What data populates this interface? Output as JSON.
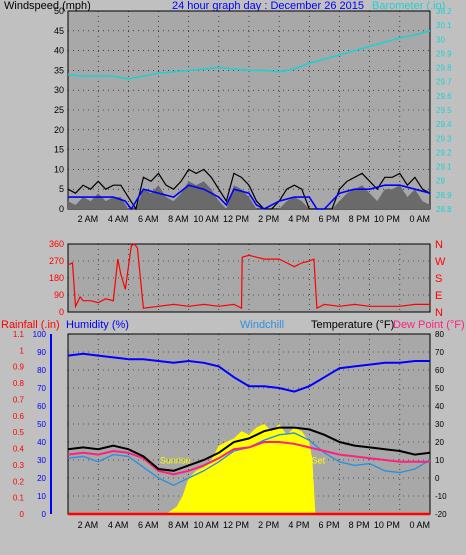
{
  "colors": {
    "background": "#c0c0c0",
    "plot_bg": "#a8a8a8",
    "wind": "#000000",
    "wind_avg": "#0000ff",
    "gust_fill": "#6a6a6a",
    "barometer": "#20d0d0",
    "direction": "#ff0000",
    "rain": "#ff0000",
    "humidity": "#0000ff",
    "windchill": "#2f8fdf",
    "temperature": "#000000",
    "dewpoint": "#ff2080",
    "solar": "#ffff00"
  },
  "header": {
    "windspeed_label": "Windspeed (mph)",
    "graph_title": "24 hour graph day : December 26 2015",
    "barometer_label": "Barometer (.in)"
  },
  "bottom_header": {
    "rainfall_label": "Rainfall (.in)",
    "humidity_label": "Humidity (%)",
    "windchill_label": "Windchill",
    "temperature_label": "Temperature (°F)",
    "dewpoint_label": "Dew Point (°F)"
  },
  "annotations": {
    "sunrise": "Sunrise",
    "sunset": "Set"
  },
  "chart_data": [
    {
      "type": "line",
      "title": "24 hour graph day : December 26 2015",
      "x_ticks": [
        "2 AM",
        "4 AM",
        "6 AM",
        "8 AM",
        "10 AM",
        "12 PM",
        "2 PM",
        "4 PM",
        "6 PM",
        "8 PM",
        "10 PM",
        "0 AM"
      ],
      "x_range_hours": [
        0,
        24
      ],
      "grid": true,
      "left_axis": {
        "label": "Windspeed (mph)",
        "ticks": [
          "0",
          "5",
          "10",
          "15",
          "20",
          "25",
          "30",
          "35",
          "40",
          "45",
          "50"
        ],
        "range": [
          0,
          50
        ]
      },
      "right_axis": {
        "label": "Barometer (.in)",
        "ticks": [
          "28.8",
          "28.9",
          "29",
          "29.1",
          "29.2",
          "29.3",
          "29.4",
          "29.5",
          "29.6",
          "29.7",
          "29.8",
          "29.9",
          "30",
          "30.1",
          "30.2"
        ],
        "range": [
          28.8,
          30.2
        ]
      },
      "series": [
        {
          "name": "Windspeed (mph)",
          "axis": "left",
          "x": [
            0,
            0.5,
            1,
            1.5,
            2,
            2.5,
            3,
            3.5,
            4,
            4.5,
            5,
            5.5,
            6,
            6.5,
            7,
            7.5,
            8,
            8.5,
            9,
            9.5,
            10,
            10.5,
            11,
            11.5,
            12,
            12.5,
            13,
            13.5,
            14,
            14.5,
            15,
            15.5,
            16,
            16.5,
            17,
            17.5,
            18,
            18.5,
            19,
            19.5,
            20,
            20.5,
            21,
            21.5,
            22,
            22.5,
            23,
            23.5,
            24
          ],
          "y": [
            5,
            4,
            6,
            5,
            7,
            5,
            6,
            6,
            3,
            0,
            8,
            7,
            9,
            6,
            5,
            7,
            10,
            9,
            10,
            8,
            5,
            2,
            9,
            8,
            6,
            2,
            0,
            0,
            2,
            5,
            6,
            5,
            0,
            0,
            0,
            0,
            5,
            7,
            8,
            9,
            7,
            5,
            8,
            8,
            9,
            6,
            8,
            5,
            4
          ]
        },
        {
          "name": "Average wind",
          "axis": "left",
          "x": [
            0,
            1,
            2,
            3,
            3.8,
            4.2,
            5,
            6,
            7,
            8,
            9,
            10,
            10.5,
            11,
            12,
            12.5,
            13,
            14,
            15,
            16,
            16.5,
            17,
            18,
            19,
            20,
            21,
            22,
            23,
            24
          ],
          "y": [
            3,
            3,
            3,
            3,
            2,
            0,
            5,
            4,
            3,
            6,
            5,
            3,
            1,
            5,
            4,
            1,
            0,
            2,
            3,
            3,
            0,
            0,
            4,
            5,
            5,
            6,
            6,
            5,
            4
          ]
        },
        {
          "name": "Barometer (.in)",
          "axis": "right",
          "x": [
            0,
            1,
            2,
            3,
            4,
            5,
            6,
            7,
            8,
            9,
            10,
            11,
            12,
            13,
            14,
            15,
            16,
            17,
            18,
            19,
            20,
            21,
            22,
            23,
            24
          ],
          "y": [
            29.75,
            29.74,
            29.74,
            29.74,
            29.72,
            29.74,
            29.76,
            29.77,
            29.78,
            29.79,
            29.8,
            29.79,
            29.78,
            29.78,
            29.77,
            29.79,
            29.83,
            29.86,
            29.89,
            29.92,
            29.95,
            29.98,
            30.01,
            30.03,
            30.06
          ]
        }
      ]
    },
    {
      "type": "line",
      "title": "",
      "x_ticks": [],
      "grid": true,
      "left_axis": {
        "ticks": [
          "0",
          "90",
          "180",
          "270",
          "360"
        ],
        "range": [
          0,
          360
        ]
      },
      "right_axis": {
        "ticks": [
          "N",
          "E",
          "S",
          "W",
          "N"
        ]
      },
      "series": [
        {
          "name": "Wind direction",
          "x": [
            0,
            0.3,
            0.5,
            0.8,
            1,
            1.5,
            2,
            2.5,
            3,
            3.3,
            3.5,
            3.8,
            4.2,
            4.4,
            4.6,
            5,
            6,
            7,
            8,
            9,
            10,
            11,
            11.5,
            11.55,
            12,
            13,
            14,
            14.5,
            15,
            15.5,
            16,
            16.3,
            16.5,
            17,
            18,
            19,
            20,
            21,
            22,
            23,
            24
          ],
          "y": [
            250,
            260,
            30,
            80,
            60,
            60,
            50,
            70,
            60,
            280,
            200,
            120,
            350,
            360,
            340,
            20,
            30,
            40,
            30,
            40,
            30,
            40,
            20,
            290,
            300,
            280,
            280,
            260,
            240,
            260,
            270,
            280,
            20,
            40,
            30,
            40,
            30,
            30,
            30,
            40,
            40
          ]
        }
      ]
    },
    {
      "type": "line",
      "title": "",
      "x_ticks": [
        "2 AM",
        "4 AM",
        "6 AM",
        "8 AM",
        "10 AM",
        "12 PM",
        "2 PM",
        "4 PM",
        "6 PM",
        "8 PM",
        "10 PM",
        "0 AM"
      ],
      "grid": true,
      "left_axis_rain": {
        "label": "Rainfall (.in)",
        "ticks": [
          "0",
          "0.1",
          "0.2",
          "0.3",
          "0.4",
          "0.5",
          "0.6",
          "0.7",
          "0.8",
          "0.9",
          "1",
          "1.1"
        ],
        "range": [
          0,
          1.1
        ]
      },
      "left_axis_humidity": {
        "label": "Humidity (%)",
        "ticks": [
          "0",
          "10",
          "20",
          "30",
          "40",
          "50",
          "60",
          "70",
          "80",
          "90",
          "100"
        ],
        "range": [
          0,
          100
        ]
      },
      "right_axis": {
        "label": "Temperature (°F)",
        "ticks": [
          "-20",
          "-10",
          "0",
          "10",
          "20",
          "30",
          "40",
          "50",
          "60",
          "70",
          "80"
        ],
        "range": [
          -20,
          80
        ]
      },
      "series": [
        {
          "name": "Humidity (%)",
          "axis": "humidity",
          "x": [
            0,
            1,
            2,
            3,
            4,
            5,
            6,
            7,
            8,
            9,
            10,
            11,
            12,
            13,
            14,
            15,
            16,
            17,
            18,
            19,
            20,
            21,
            22,
            23,
            24
          ],
          "y": [
            88,
            89,
            88,
            87,
            86,
            86,
            85,
            84,
            85,
            84,
            82,
            76,
            71,
            71,
            70,
            68,
            71,
            76,
            81,
            82,
            83,
            84,
            84,
            85,
            85
          ]
        },
        {
          "name": "Temperature (°F)",
          "axis": "temp",
          "x": [
            0,
            1,
            2,
            3,
            4,
            5,
            6,
            7,
            8,
            9,
            10,
            11,
            12,
            13,
            14,
            15,
            16,
            17,
            18,
            19,
            20,
            21,
            22,
            23,
            24
          ],
          "y": [
            16,
            17,
            16,
            18,
            16,
            12,
            5,
            4,
            7,
            10,
            14,
            20,
            22,
            26,
            28,
            28,
            27,
            24,
            20,
            18,
            17,
            16,
            15,
            13,
            14
          ]
        },
        {
          "name": "Dew Point (°F)",
          "axis": "temp",
          "x": [
            0,
            1,
            2,
            3,
            4,
            5,
            6,
            7,
            8,
            9,
            10,
            11,
            12,
            13,
            14,
            15,
            16,
            17,
            18,
            19,
            20,
            21,
            22,
            23,
            24
          ],
          "y": [
            13,
            14,
            13,
            15,
            14,
            11,
            4,
            2,
            4,
            7,
            11,
            16,
            17,
            20,
            20,
            19,
            17,
            15,
            13,
            12,
            11,
            10,
            9,
            9,
            9
          ]
        },
        {
          "name": "Windchill",
          "axis": "temp",
          "x": [
            0,
            1,
            2,
            3,
            4,
            5,
            6,
            7,
            8,
            9,
            10,
            11,
            12,
            13,
            14,
            15,
            16,
            17,
            18,
            19,
            20,
            21,
            22,
            23,
            24
          ],
          "y": [
            11,
            12,
            9,
            13,
            12,
            6,
            0,
            -4,
            0,
            4,
            9,
            15,
            17,
            21,
            24,
            25,
            21,
            14,
            9,
            7,
            8,
            4,
            3,
            5,
            10
          ]
        },
        {
          "name": "Solar",
          "axis": "temp",
          "x": [
            0,
            6.5,
            7.2,
            7.6,
            8,
            8.5,
            9,
            9.5,
            10,
            10.5,
            11,
            11.5,
            12,
            12.5,
            13,
            13.5,
            14,
            14.5,
            15,
            15.5,
            16,
            16.2,
            16.4,
            24
          ],
          "y": [
            -20,
            -20,
            -16,
            -10,
            0,
            4,
            6,
            10,
            18,
            20,
            22,
            26,
            24,
            28,
            30,
            26,
            30,
            24,
            28,
            26,
            20,
            10,
            -20,
            -20
          ]
        },
        {
          "name": "Rainfall (.in)",
          "axis": "rain",
          "x": [
            0,
            24
          ],
          "y": [
            0,
            0
          ]
        }
      ]
    }
  ]
}
